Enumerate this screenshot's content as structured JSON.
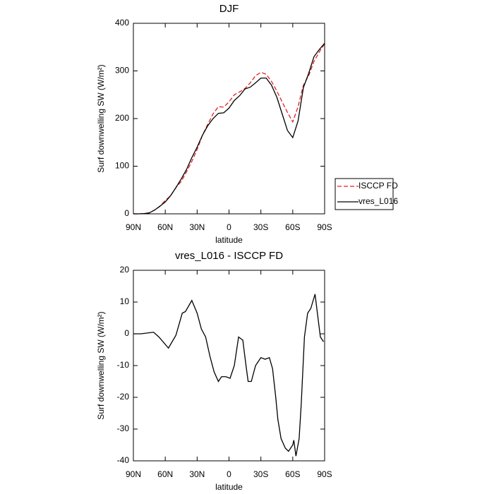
{
  "chart_data": [
    {
      "type": "line",
      "title": "DJF",
      "xlabel": "latitude",
      "ylabel": "Surf downwelling SW (W/m²)",
      "x": [
        90,
        85,
        80,
        75,
        70,
        65,
        60,
        55,
        50,
        45,
        40,
        35,
        30,
        25,
        20,
        15,
        10,
        5,
        0,
        -5,
        -10,
        -15,
        -20,
        -25,
        -30,
        -35,
        -40,
        -45,
        -50,
        -55,
        -60,
        -65,
        -70,
        -75,
        -80,
        -85,
        -90
      ],
      "series": [
        {
          "name": "ISCCP FD",
          "color": "#e02020",
          "linestyle": "dashed",
          "values": [
            0,
            0,
            0.5,
            2,
            8,
            16,
            28,
            38,
            55,
            68,
            88,
            110,
            135,
            165,
            188,
            210,
            225,
            224,
            235,
            250,
            256,
            263,
            275,
            290,
            297,
            293,
            278,
            258,
            235,
            213,
            193,
            225,
            270,
            290,
            320,
            340,
            357
          ]
        },
        {
          "name": "vres_L016",
          "color": "#000000",
          "linestyle": "solid",
          "values": [
            0,
            0,
            0.5,
            2,
            8,
            16,
            25,
            38,
            55,
            73,
            93,
            118,
            140,
            165,
            185,
            200,
            211,
            212,
            222,
            238,
            248,
            262,
            266,
            275,
            285,
            285,
            270,
            245,
            210,
            175,
            160,
            195,
            265,
            295,
            330,
            345,
            358
          ]
        }
      ],
      "xlim": [
        90,
        -90
      ],
      "xticks": [
        {
          "value": 90,
          "label": "90N"
        },
        {
          "value": 60,
          "label": "60N"
        },
        {
          "value": 30,
          "label": "30N"
        },
        0,
        {
          "value": -30,
          "label": "30S"
        },
        {
          "value": -60,
          "label": "60S"
        },
        {
          "value": -90,
          "label": "90S"
        }
      ],
      "ylim": [
        0,
        400
      ],
      "yticks": [
        0,
        100,
        200,
        300,
        400
      ],
      "legend": "right"
    },
    {
      "type": "line",
      "title": "vres_L016 - ISCCP FD",
      "xlabel": "latitude",
      "ylabel": "Surf downwelling SW (W/m²)",
      "x": [
        90,
        83,
        71,
        66,
        57,
        50,
        44,
        41,
        35,
        30,
        26,
        22,
        18,
        14,
        10,
        7,
        3,
        -1,
        -5,
        -9,
        -13,
        -16,
        -18,
        -21,
        -25,
        -30,
        -34,
        -38,
        -41,
        -44,
        -46,
        -49,
        -53,
        -56,
        -60,
        -61,
        -63,
        -66,
        -68,
        -71,
        -74,
        -77,
        -81,
        -83,
        -86,
        -89
      ],
      "series": [
        {
          "color": "#000000",
          "linestyle": "solid",
          "values": [
            0,
            0,
            0.5,
            -1,
            -4.5,
            -0.5,
            6.5,
            7,
            10.5,
            6.5,
            1.5,
            -1,
            -7,
            -12,
            -15,
            -13.5,
            -13.5,
            -14,
            -10,
            -1,
            -2,
            -10,
            -15,
            -15,
            -10,
            -7.5,
            -8,
            -7.5,
            -11,
            -20,
            -27,
            -33,
            -36,
            -37,
            -35,
            -33.5,
            -38.5,
            -33,
            -22,
            -1,
            6.5,
            8,
            12.5,
            7,
            -1,
            -2.5
          ]
        }
      ],
      "xlim": [
        90,
        -90
      ],
      "xticks": [
        {
          "value": 90,
          "label": "90N"
        },
        {
          "value": 60,
          "label": "60N"
        },
        {
          "value": 30,
          "label": "30N"
        },
        0,
        {
          "value": -30,
          "label": "30S"
        },
        {
          "value": -60,
          "label": "60S"
        },
        {
          "value": -90,
          "label": "90S"
        }
      ],
      "ylim": [
        -40,
        20
      ],
      "yticks": [
        -40,
        -30,
        -20,
        -10,
        0,
        10,
        20
      ]
    }
  ]
}
